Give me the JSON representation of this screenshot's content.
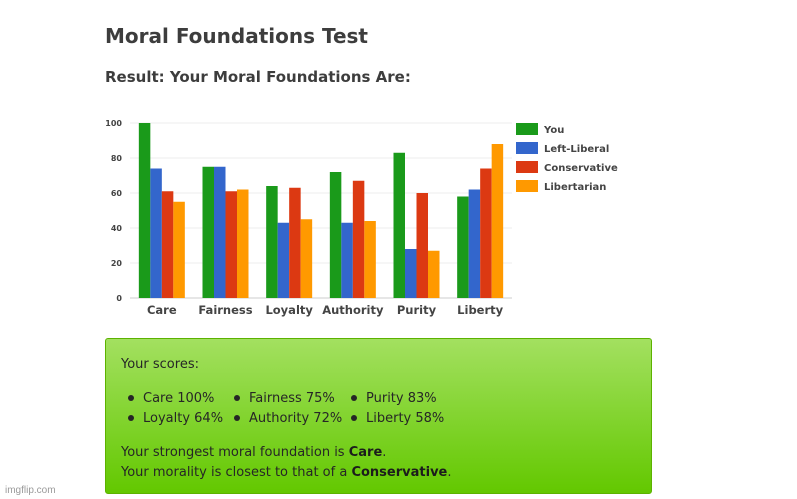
{
  "page": {
    "title": "Moral Foundations Test",
    "result_heading": "Result: Your Moral Foundations Are:"
  },
  "chart_data": {
    "type": "bar",
    "categories": [
      "Care",
      "Fairness",
      "Loyalty",
      "Authority",
      "Purity",
      "Liberty"
    ],
    "series": [
      {
        "name": "You",
        "color": "#1a9a1a",
        "values": [
          100,
          75,
          64,
          72,
          83,
          58
        ]
      },
      {
        "name": "Left-Liberal",
        "color": "#3366cc",
        "values": [
          74,
          75,
          43,
          43,
          28,
          62
        ]
      },
      {
        "name": "Conservative",
        "color": "#dc3912",
        "values": [
          61,
          61,
          63,
          67,
          60,
          74
        ]
      },
      {
        "name": "Libertarian",
        "color": "#ff9900",
        "values": [
          55,
          62,
          45,
          44,
          27,
          88
        ]
      }
    ],
    "ylim": [
      0,
      100
    ],
    "yticks": [
      0,
      20,
      40,
      60,
      80,
      100
    ],
    "grid": true,
    "legend_position": "right"
  },
  "scores": {
    "heading": "Your scores:",
    "items": [
      {
        "label": "Care 100%"
      },
      {
        "label": "Fairness 75%"
      },
      {
        "label": "Purity 83%"
      },
      {
        "label": "Loyalty 64%"
      },
      {
        "label": "Authority 72%"
      },
      {
        "label": "Liberty 58%"
      }
    ],
    "strongest_prefix": "Your strongest moral foundation is ",
    "strongest_value": "Care",
    "strongest_suffix": ".",
    "closest_prefix": "Your morality is closest to that of a ",
    "closest_value": "Conservative",
    "closest_suffix": "."
  },
  "watermark": "imgflip.com",
  "colors": {
    "box_top": "#a3e060",
    "box_bottom": "#63c800"
  }
}
